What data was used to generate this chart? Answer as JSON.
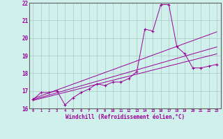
{
  "xlabel": "Windchill (Refroidissement éolien,°C)",
  "bg_color": "#d0f0eb",
  "grid_color": "#aac8c4",
  "line_color": "#990099",
  "hours": [
    0,
    1,
    2,
    3,
    4,
    5,
    6,
    7,
    8,
    9,
    10,
    11,
    12,
    13,
    14,
    15,
    16,
    17,
    18,
    19,
    20,
    21,
    22,
    23
  ],
  "windchill": [
    16.5,
    16.9,
    16.9,
    17.0,
    16.2,
    16.6,
    16.9,
    17.1,
    17.4,
    17.3,
    17.5,
    17.5,
    17.7,
    18.1,
    20.5,
    20.4,
    21.9,
    21.9,
    19.5,
    19.1,
    18.3,
    18.3,
    18.4,
    18.5
  ],
  "trend1": [
    16.55,
    16.72,
    16.88,
    17.05,
    17.21,
    17.38,
    17.54,
    17.71,
    17.87,
    18.04,
    18.2,
    18.37,
    18.53,
    18.7,
    18.86,
    19.03,
    19.19,
    19.36,
    19.52,
    19.69,
    19.85,
    20.02,
    20.18,
    20.35
  ],
  "trend2": [
    16.5,
    16.63,
    16.76,
    16.89,
    17.02,
    17.15,
    17.28,
    17.41,
    17.54,
    17.67,
    17.8,
    17.93,
    18.06,
    18.19,
    18.32,
    18.45,
    18.58,
    18.71,
    18.84,
    18.97,
    19.1,
    19.23,
    19.36,
    19.49
  ],
  "trend3": [
    16.45,
    16.57,
    16.68,
    16.8,
    16.91,
    17.03,
    17.14,
    17.26,
    17.37,
    17.49,
    17.6,
    17.72,
    17.83,
    17.95,
    18.06,
    18.18,
    18.29,
    18.41,
    18.52,
    18.64,
    18.75,
    18.87,
    18.98,
    19.1
  ],
  "ylim": [
    16.0,
    22.0
  ],
  "yticks": [
    16,
    17,
    18,
    19,
    20,
    21,
    22
  ],
  "xlim": [
    -0.5,
    23.5
  ]
}
